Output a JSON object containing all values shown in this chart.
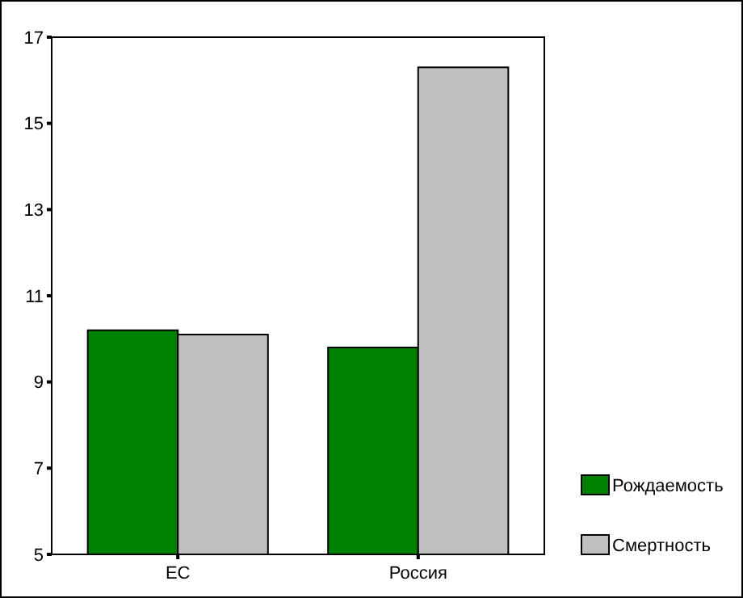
{
  "chart_data": {
    "type": "bar",
    "categories": [
      "ЕС",
      "Россия"
    ],
    "series": [
      {
        "name": "Рождаемость",
        "color": "#008000",
        "values": [
          10.2,
          9.8
        ]
      },
      {
        "name": "Смертность",
        "color": "#c0c0c0",
        "values": [
          10.1,
          16.3
        ]
      }
    ],
    "ylim": [
      5,
      17
    ],
    "yticks": [
      5,
      7,
      9,
      11,
      13,
      15,
      17
    ],
    "grid": false,
    "legend": "right"
  }
}
